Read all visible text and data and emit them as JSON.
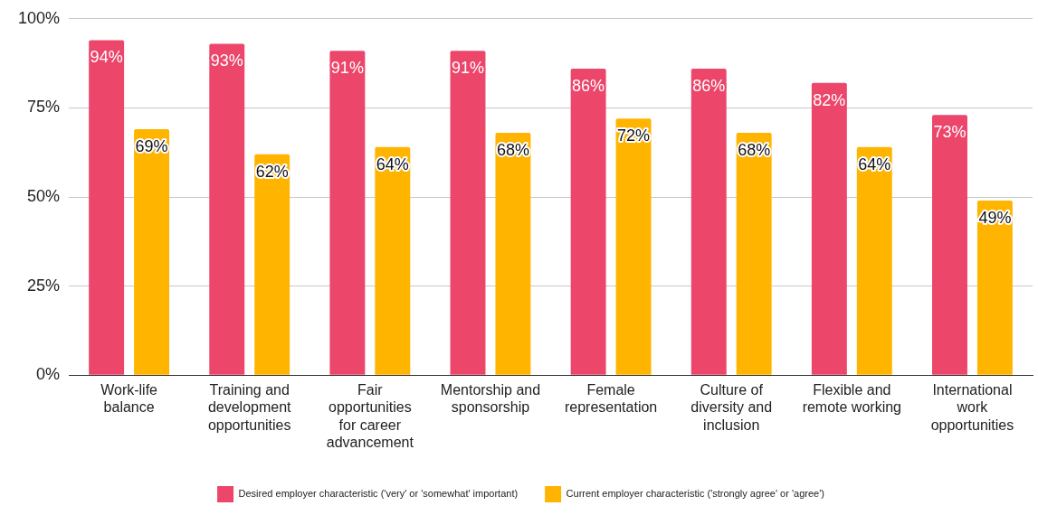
{
  "chart_data": {
    "type": "bar",
    "categories": [
      "Work-life balance",
      "Training and development opportunities",
      "Fair opportunities for career advancement",
      "Mentorship and sponsorship",
      "Female representation",
      "Culture of diversity and inclusion",
      "Flexible and remote working",
      "International work opportunities"
    ],
    "series": [
      {
        "name": "Desired employer characteristic ('very' or 'somewhat' important)",
        "color": "#ec466b",
        "values": [
          94,
          93,
          91,
          91,
          86,
          86,
          82,
          73
        ],
        "value_labels": [
          "94%",
          "93%",
          "91%",
          "91%",
          "86%",
          "86%",
          "82%",
          "73%"
        ]
      },
      {
        "name": "Current employer characteristic ('strongly agree' or 'agree')",
        "color": "#ffb400",
        "values": [
          69,
          62,
          64,
          68,
          72,
          68,
          64,
          49
        ],
        "value_labels": [
          "69%",
          "62%",
          "64%",
          "68%",
          "72%",
          "68%",
          "64%",
          "49%"
        ]
      }
    ],
    "ylim": [
      0,
      100
    ],
    "yticks": [
      {
        "value": 0,
        "label": "0%"
      },
      {
        "value": 25,
        "label": "25%"
      },
      {
        "value": 50,
        "label": "50%"
      },
      {
        "value": 75,
        "label": "75%"
      },
      {
        "value": 100,
        "label": "100%"
      }
    ],
    "grid": "y",
    "legend": "bottom"
  }
}
